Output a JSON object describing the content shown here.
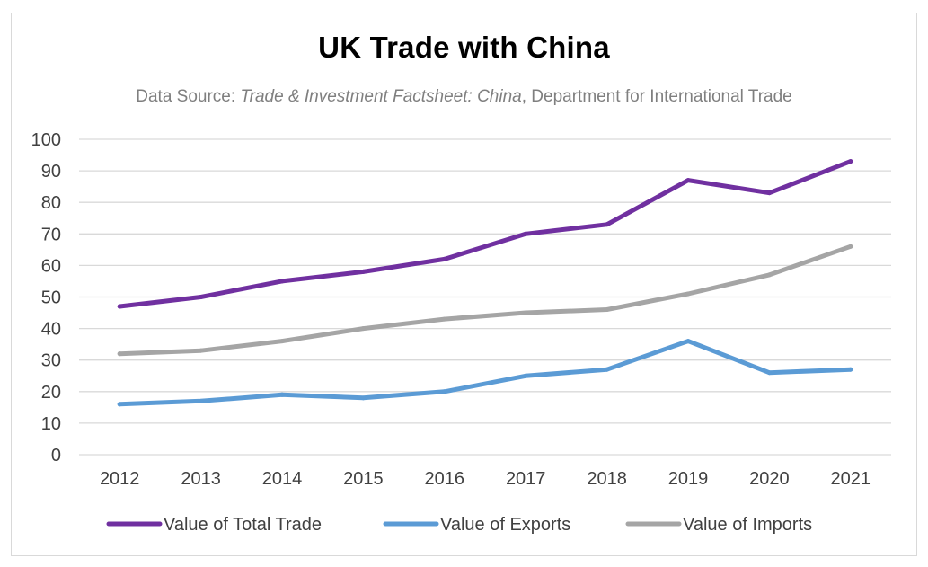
{
  "chart_data": {
    "type": "line",
    "title": "UK Trade with China",
    "subtitle": {
      "prefix": "Data Source: ",
      "source_title": "Trade & Investment Factsheet: China",
      "suffix": ", Department for International Trade"
    },
    "xlabel": "",
    "ylabel": "",
    "x": [
      "2012",
      "2013",
      "2014",
      "2015",
      "2016",
      "2017",
      "2018",
      "2019",
      "2020",
      "2021"
    ],
    "ylim": [
      0,
      100
    ],
    "yticks": [
      0,
      10,
      20,
      30,
      40,
      50,
      60,
      70,
      80,
      90,
      100
    ],
    "grid": true,
    "legend_position": "bottom",
    "series": [
      {
        "name": "Value of Total Trade",
        "color": "#7030a0",
        "values": [
          47,
          50,
          55,
          58,
          62,
          70,
          73,
          87,
          83,
          93
        ]
      },
      {
        "name": "Value of Exports",
        "color": "#5b9bd5",
        "values": [
          16,
          17,
          19,
          18,
          20,
          25,
          27,
          36,
          26,
          27
        ]
      },
      {
        "name": "Value of Imports",
        "color": "#a5a5a5",
        "values": [
          32,
          33,
          36,
          40,
          43,
          45,
          46,
          51,
          57,
          66
        ]
      }
    ]
  }
}
